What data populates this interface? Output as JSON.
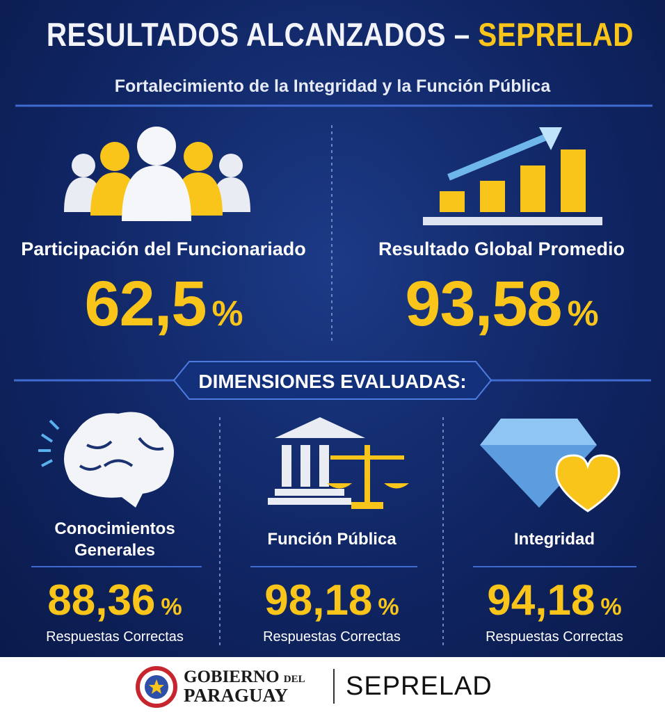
{
  "header": {
    "title": "RESULTADOS ALCANZADOS –",
    "title_highlight": "SEPRELAD",
    "subtitle": "Fortalecimiento de la Integridad y la Función Pública"
  },
  "stats": [
    {
      "label": "Participación del Funcionariado",
      "value": "62,5",
      "unit": "%"
    },
    {
      "label": "Resultado Global Promedio",
      "value": "93,58",
      "unit": "%"
    }
  ],
  "section_title": "DIMENSIONES EVALUADAS:",
  "dimensions": [
    {
      "label": "Conocimientos Generales",
      "value": "88,36",
      "unit": "%",
      "caption": "Respuestas Correctas"
    },
    {
      "label": "Función Pública",
      "value": "98,18",
      "unit": "%",
      "caption": "Respuestas Correctas"
    },
    {
      "label": "Integridad",
      "value": "94,18",
      "unit": "%",
      "caption": "Respuestas Correctas"
    }
  ],
  "footer": {
    "gov_line1": "GOBIERNO",
    "gov_del": "DEL",
    "gov_line2": "PARAGUAY",
    "brand": "SEPRELAD"
  }
}
